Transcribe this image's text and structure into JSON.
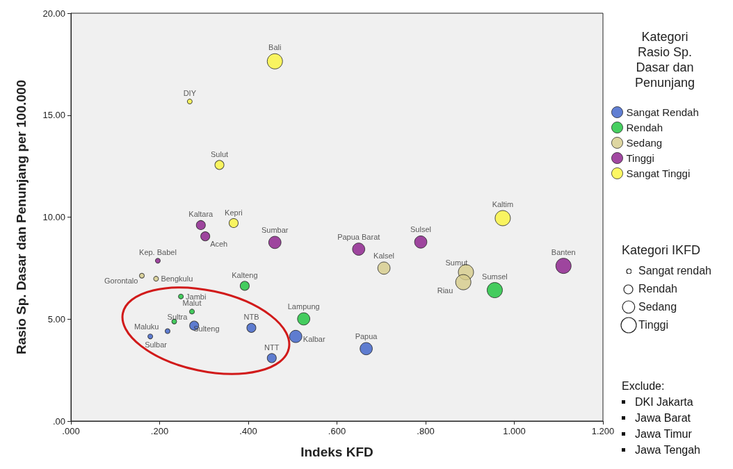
{
  "chart_data": {
    "type": "bubble",
    "xlabel": "Indeks KFD",
    "ylabel": "Rasio Sp. Dasar dan Penunjang per 100.000",
    "xlim": [
      0,
      1.2
    ],
    "ylim": [
      0,
      20
    ],
    "xticks": [
      {
        "value": 0,
        "label": ".000"
      },
      {
        "value": 0.2,
        "label": ".200"
      },
      {
        "value": 0.4,
        "label": ".400"
      },
      {
        "value": 0.6,
        "label": ".600"
      },
      {
        "value": 0.8,
        "label": ".800"
      },
      {
        "value": 1,
        "label": "1.000"
      },
      {
        "value": 1.2,
        "label": "1.200"
      }
    ],
    "yticks": [
      {
        "value": 0,
        "label": ".00"
      },
      {
        "value": 5,
        "label": "5.00"
      },
      {
        "value": 10,
        "label": "10.00"
      },
      {
        "value": 15,
        "label": "15.00"
      },
      {
        "value": 20,
        "label": "20.00"
      }
    ],
    "legend_title": "Kategori Rasio Sp. Dasar dan Penunjang",
    "legend": "right",
    "grid": false,
    "marker": "circle",
    "size_legend": [
      {
        "value": 0.1,
        "label": "Sangat rendah"
      },
      {
        "value": 0.35,
        "label": "Rendah"
      },
      {
        "value": 0.65,
        "label": "Sedang"
      },
      {
        "value": 1,
        "label": "Tinggi"
      }
    ],
    "series": [
      {
        "name": "Sangat Rendah",
        "color": "#3a5fc8",
        "x": [
          0.278,
          0.407,
          0.218,
          0.179,
          0.507,
          0.453,
          0.666
        ],
        "values": [
          4.68,
          4.57,
          4.41,
          4.15,
          4.15,
          3.09,
          3.55
        ],
        "sizes": [
          0.35,
          0.35,
          0.1,
          0.1,
          0.65,
          0.35,
          0.65
        ],
        "value_labels": [
          "Sulteng",
          "NTB",
          "Maluku",
          "Sulbar",
          "Kalbar",
          "NTT",
          "Papua"
        ]
      },
      {
        "name": "Rendah",
        "color": "#19c33a",
        "x": [
          0.392,
          0.248,
          0.273,
          0.233,
          0.525,
          0.956
        ],
        "values": [
          6.63,
          6.11,
          5.37,
          4.88,
          5.01,
          6.42
        ],
        "sizes": [
          0.35,
          0.1,
          0.1,
          0.1,
          0.65,
          1
        ],
        "value_labels": [
          "Kalteng",
          "Jambi",
          "Malut",
          "Sultra",
          "Lampung",
          "Sumsel"
        ]
      },
      {
        "name": "Sedang",
        "color": "#d6cc8a",
        "x": [
          0.16,
          0.192,
          0.706,
          0.891,
          0.885
        ],
        "values": [
          7.13,
          6.98,
          7.5,
          7.3,
          6.81
        ],
        "sizes": [
          0.1,
          0.1,
          0.65,
          1,
          1
        ],
        "value_labels": [
          "Gorontalo",
          "Bengkulu",
          "Kalsel",
          "Sumut",
          "Riau"
        ]
      },
      {
        "name": "Tinggi",
        "color": "#8a1a8a",
        "x": [
          0.293,
          0.303,
          0.46,
          0.196,
          0.649,
          0.789,
          1.111
        ],
        "values": [
          9.61,
          9.06,
          8.76,
          7.86,
          8.43,
          8.78,
          7.61
        ],
        "sizes": [
          0.35,
          0.35,
          0.65,
          0.1,
          0.65,
          0.65,
          1
        ],
        "value_labels": [
          "Kaltara",
          "Aceh",
          "Sumbar",
          "Kep. Babel",
          "Papua Barat",
          "Sulsel",
          "Banten"
        ]
      },
      {
        "name": "Sangat Tinggi",
        "color": "#fbf53c",
        "x": [
          0.46,
          0.268,
          0.335,
          0.367,
          0.974
        ],
        "values": [
          17.64,
          15.67,
          12.56,
          9.71,
          9.95
        ],
        "sizes": [
          1,
          0.1,
          0.35,
          0.35,
          1
        ],
        "value_labels": [
          "Bali",
          "DIY",
          "Sulut",
          "Kepri",
          "Kaltim"
        ]
      }
    ],
    "annotations": [
      "Kategori IKFD",
      "Exclude:",
      "DKI Jakarta",
      "Jawa Barat",
      "Jawa Timur",
      "Jawa Tengah"
    ]
  }
}
